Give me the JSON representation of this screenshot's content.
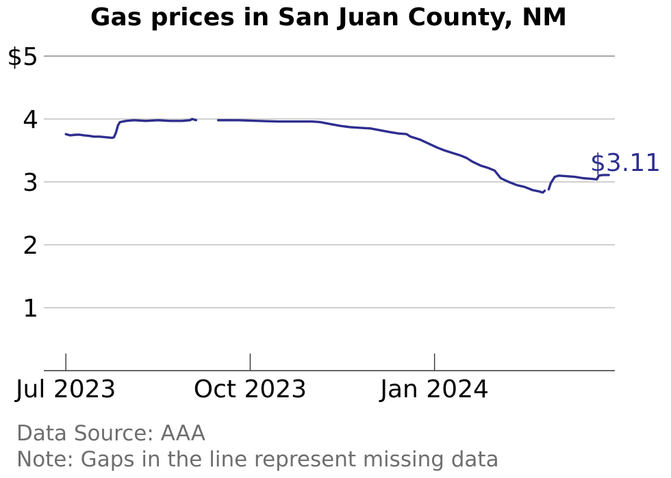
{
  "chart_data": {
    "type": "line",
    "title": "Gas prices in San Juan County, NM",
    "y_tick_labels": [
      "$5",
      "4",
      "3",
      "2",
      "1"
    ],
    "y_tick_values": [
      5,
      4,
      3,
      2,
      1
    ],
    "ylim": [
      0,
      5
    ],
    "x_tick_labels": [
      "Jul 2023",
      "Oct 2023",
      "Jan 2024"
    ],
    "x_tick_dates": [
      "2023-07-01",
      "2023-10-01",
      "2024-01-01"
    ],
    "xlim": [
      "2023-06-20",
      "2024-03-31"
    ],
    "grid": "horizontal",
    "line_color": "#2e2e8f",
    "end_label": "$3.11",
    "series": [
      {
        "segments": [
          [
            [
              "2023-07-01",
              3.76
            ],
            [
              "2023-07-03",
              3.74
            ],
            [
              "2023-07-06",
              3.75
            ],
            [
              "2023-07-08",
              3.75
            ],
            [
              "2023-07-10",
              3.74
            ],
            [
              "2023-07-13",
              3.73
            ],
            [
              "2023-07-15",
              3.72
            ],
            [
              "2023-07-18",
              3.72
            ],
            [
              "2023-07-21",
              3.71
            ],
            [
              "2023-07-24",
              3.7
            ],
            [
              "2023-07-25",
              3.71
            ],
            [
              "2023-07-26",
              3.78
            ],
            [
              "2023-07-27",
              3.9
            ],
            [
              "2023-07-28",
              3.95
            ],
            [
              "2023-07-31",
              3.97
            ],
            [
              "2023-08-04",
              3.98
            ],
            [
              "2023-08-10",
              3.97
            ],
            [
              "2023-08-16",
              3.98
            ],
            [
              "2023-08-22",
              3.97
            ],
            [
              "2023-08-28",
              3.97
            ],
            [
              "2023-09-01",
              3.98
            ],
            [
              "2023-09-02",
              4.0
            ],
            [
              "2023-09-04",
              3.98
            ]
          ],
          [
            [
              "2023-09-15",
              3.98
            ],
            [
              "2023-09-25",
              3.98
            ],
            [
              "2023-10-05",
              3.97
            ],
            [
              "2023-10-15",
              3.96
            ],
            [
              "2023-10-25",
              3.96
            ],
            [
              "2023-11-01",
              3.96
            ],
            [
              "2023-11-05",
              3.95
            ],
            [
              "2023-11-10",
              3.92
            ],
            [
              "2023-11-15",
              3.89
            ],
            [
              "2023-11-20",
              3.87
            ],
            [
              "2023-11-25",
              3.86
            ],
            [
              "2023-11-30",
              3.85
            ],
            [
              "2023-12-05",
              3.82
            ],
            [
              "2023-12-10",
              3.79
            ],
            [
              "2023-12-14",
              3.77
            ],
            [
              "2023-12-18",
              3.76
            ],
            [
              "2023-12-20",
              3.72
            ],
            [
              "2023-12-25",
              3.67
            ],
            [
              "2023-12-29",
              3.61
            ],
            [
              "2024-01-02",
              3.55
            ],
            [
              "2024-01-06",
              3.5
            ],
            [
              "2024-01-10",
              3.46
            ],
            [
              "2024-01-14",
              3.42
            ],
            [
              "2024-01-17",
              3.38
            ],
            [
              "2024-01-20",
              3.32
            ],
            [
              "2024-01-24",
              3.26
            ],
            [
              "2024-01-28",
              3.22
            ],
            [
              "2024-01-31",
              3.18
            ],
            [
              "2024-02-03",
              3.06
            ],
            [
              "2024-02-07",
              3.0
            ],
            [
              "2024-02-11",
              2.95
            ],
            [
              "2024-02-15",
              2.92
            ],
            [
              "2024-02-19",
              2.87
            ],
            [
              "2024-02-22",
              2.85
            ],
            [
              "2024-02-24",
              2.83
            ],
            [
              "2024-02-25",
              2.86
            ]
          ],
          [
            [
              "2024-02-27",
              2.88
            ],
            [
              "2024-02-28",
              2.98
            ],
            [
              "2024-03-01",
              3.08
            ],
            [
              "2024-03-03",
              3.1
            ],
            [
              "2024-03-07",
              3.09
            ],
            [
              "2024-03-11",
              3.08
            ],
            [
              "2024-03-15",
              3.06
            ],
            [
              "2024-03-19",
              3.05
            ],
            [
              "2024-03-22",
              3.04
            ],
            [
              "2024-03-23",
              3.1
            ],
            [
              "2024-03-25",
              3.11
            ],
            [
              "2024-03-28",
              3.11
            ]
          ]
        ]
      }
    ]
  },
  "footnotes": {
    "source": "Data Source: AAA",
    "note": "Note: Gaps in the line represent missing data"
  }
}
